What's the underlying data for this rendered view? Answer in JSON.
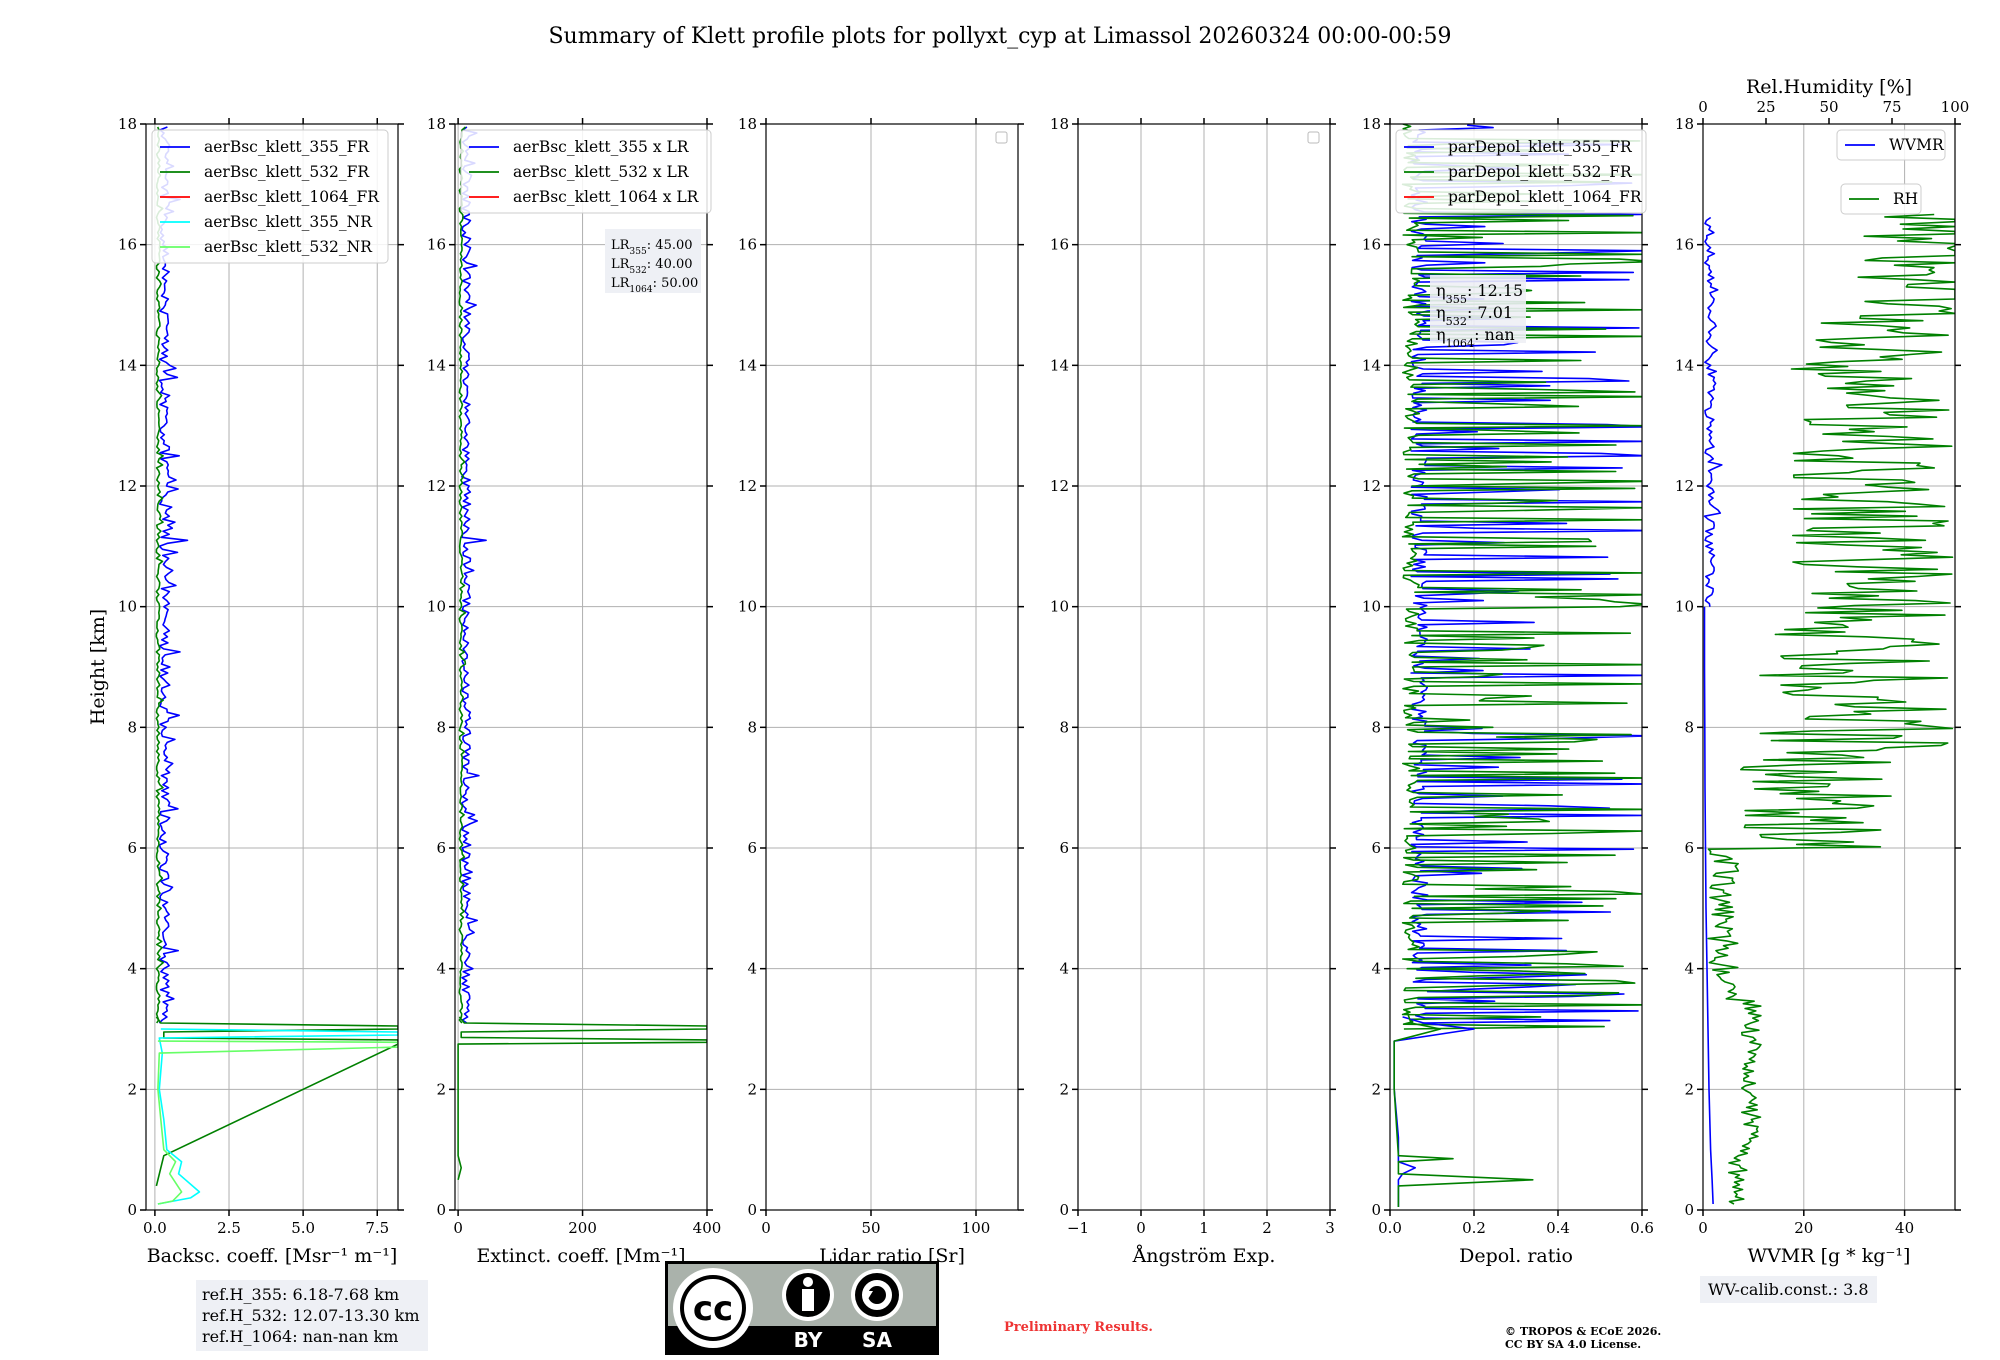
{
  "figure_title": "Summary of Klett profile plots for pollyxt_cyp at Limassol 20260324 00:00-00:59",
  "colors": {
    "blue": "#0000ff",
    "green": "#008000",
    "red": "#ff0000",
    "cyan": "#00ffff",
    "lightgreen": "#66ff66",
    "grid": "#b0b0b0"
  },
  "chart_data": [
    {
      "id": "bsc",
      "type": "line",
      "xlabel": "Backsc. coeff. [Msr⁻¹ m⁻¹]",
      "ylabel": "Height [km]",
      "xlim": [
        -0.3,
        8.2
      ],
      "ylim": [
        0,
        18
      ],
      "xticks": [
        0,
        2.5,
        5,
        7.5
      ],
      "xticklabels": [
        "0.0",
        "2.5",
        "5.0",
        "7.5"
      ],
      "yticks": [
        0,
        2,
        4,
        6,
        8,
        10,
        12,
        14,
        16,
        18
      ],
      "legend": [
        "aerBsc_klett_355_FR",
        "aerBsc_klett_532_FR",
        "aerBsc_klett_1064_FR",
        "aerBsc_klett_355_NR",
        "aerBsc_klett_532_NR"
      ],
      "series": [
        {
          "name": "aerBsc_klett_355_FR",
          "color": "blue",
          "style": "noisy",
          "h": [
            3.1,
            18
          ],
          "base": 0.15,
          "amp": 0.35,
          "spikes": [
            [
              11.1,
              1.1
            ],
            [
              4.1,
              0.4
            ],
            [
              10.6,
              0.6
            ]
          ]
        },
        {
          "name": "aerBsc_klett_532_FR",
          "color": "green",
          "style": "noisy",
          "h": [
            3.1,
            18
          ],
          "base": 0.05,
          "amp": 0.12,
          "spikes": []
        },
        {
          "name": "aerBsc_klett_532_FR_cloud",
          "color": "green",
          "style": "pts",
          "x": [
            0.05,
            0.3,
            8.2,
            8.2,
            0.3,
            0.3,
            8.2,
            8.2,
            0.2,
            0.05
          ],
          "y": [
            0.4,
            0.9,
            2.75,
            2.82,
            2.85,
            2.95,
            3.0,
            3.05,
            3.1,
            3.2
          ]
        },
        {
          "name": "aerBsc_klett_355_NR",
          "color": "cyan",
          "style": "pts",
          "x": [
            0.1,
            1.2,
            1.5,
            0.8,
            0.9,
            0.4,
            0.3,
            0.15,
            0.2,
            0.25,
            0.15,
            8.2,
            8.2,
            0.2
          ],
          "y": [
            0.1,
            0.2,
            0.3,
            0.6,
            0.8,
            1.0,
            1.5,
            2.0,
            2.3,
            2.6,
            2.85,
            2.9,
            2.95,
            3.0
          ]
        },
        {
          "name": "aerBsc_klett_532_NR",
          "color": "lightgreen",
          "style": "pts",
          "x": [
            0.1,
            0.6,
            0.9,
            0.5,
            0.7,
            0.3,
            0.2,
            0.1,
            0.15,
            8.2,
            8.2,
            0.1
          ],
          "y": [
            0.1,
            0.15,
            0.3,
            0.6,
            0.8,
            1.0,
            1.5,
            2.0,
            2.6,
            2.7,
            2.78,
            2.8
          ]
        }
      ]
    },
    {
      "id": "ext",
      "type": "line",
      "xlabel": "Extinct. coeff. [Mm⁻¹]",
      "xlim": [
        -5,
        400
      ],
      "ylim": [
        0,
        18
      ],
      "xticks": [
        0,
        200,
        400
      ],
      "xticklabels": [
        "0",
        "200",
        "400"
      ],
      "yticks": [
        0,
        2,
        4,
        6,
        8,
        10,
        12,
        14,
        16,
        18
      ],
      "legend": [
        "aerBsc_klett_355 x LR",
        "aerBsc_klett_532 x LR",
        "aerBsc_klett_1064 x LR"
      ],
      "lr_box": [
        [
          "355",
          "45.00"
        ],
        [
          "532",
          "40.00"
        ],
        [
          "1064",
          "50.00"
        ]
      ],
      "series": [
        {
          "name": "aerBsc_klett_355 x LR",
          "color": "blue",
          "style": "noisy",
          "h": [
            3.1,
            18
          ],
          "base": 6,
          "amp": 14,
          "spikes": [
            [
              11.1,
              45
            ],
            [
              10.6,
              25
            ]
          ]
        },
        {
          "name": "aerBsc_klett_532 x LR",
          "color": "green",
          "style": "noisy",
          "h": [
            3.1,
            18
          ],
          "base": 2,
          "amp": 5,
          "spikes": []
        },
        {
          "name": "aerBsc_klett_532 x LR_cloud",
          "color": "green",
          "style": "pts",
          "x": [
            0,
            5,
            0,
            0,
            400,
            400,
            5,
            5,
            400,
            400,
            10,
            2
          ],
          "y": [
            0.5,
            0.7,
            0.9,
            2.75,
            2.78,
            2.82,
            2.86,
            2.95,
            3.0,
            3.05,
            3.1,
            3.2
          ]
        }
      ]
    },
    {
      "id": "lr",
      "type": "line",
      "xlabel": "Lidar ratio [Sr]",
      "xlim": [
        0,
        120
      ],
      "ylim": [
        0,
        18
      ],
      "xticks": [
        0,
        50,
        100
      ],
      "xticklabels": [
        "0",
        "50",
        "100"
      ],
      "yticks": [
        0,
        2,
        4,
        6,
        8,
        10,
        12,
        14,
        16,
        18
      ],
      "empty_legend": true,
      "series": []
    },
    {
      "id": "ang",
      "type": "line",
      "xlabel": "Ångström Exp.",
      "xlim": [
        -1,
        3
      ],
      "ylim": [
        0,
        18
      ],
      "xticks": [
        -1,
        0,
        1,
        2,
        3
      ],
      "xticklabels": [
        "−1",
        "0",
        "1",
        "2",
        "3"
      ],
      "yticks": [
        0,
        2,
        4,
        6,
        8,
        10,
        12,
        14,
        16,
        18
      ],
      "empty_legend": true,
      "series": []
    },
    {
      "id": "dep",
      "type": "line",
      "xlabel": "Depol. ratio",
      "xlim": [
        0,
        0.6
      ],
      "ylim": [
        0,
        18
      ],
      "xticks": [
        0,
        0.2,
        0.4,
        0.6
      ],
      "xticklabels": [
        "0.0",
        "0.2",
        "0.4",
        "0.6"
      ],
      "yticks": [
        0,
        2,
        4,
        6,
        8,
        10,
        12,
        14,
        16,
        18
      ],
      "legend": [
        "parDepol_klett_355_FR",
        "parDepol_klett_532_FR",
        "parDepol_klett_1064_FR"
      ],
      "eta_box": [
        [
          "355",
          "12.15"
        ],
        [
          "532",
          "7.01"
        ],
        [
          "1064",
          "nan"
        ]
      ],
      "series": [
        {
          "name": "parDepol_klett_355_FR",
          "color": "blue",
          "style": "spiky",
          "h": [
            3.1,
            18
          ],
          "base": 0.05,
          "amp": 0.6
        },
        {
          "name": "parDepol_klett_532_FR",
          "color": "green",
          "style": "spiky",
          "h": [
            3.0,
            18
          ],
          "base": 0.03,
          "amp": 0.6
        },
        {
          "name": "parDepol_klett_355_FR_low",
          "color": "blue",
          "style": "pts",
          "x": [
            0.02,
            0.02,
            0.03,
            0.06,
            0.02,
            0.02,
            0.01,
            0.01,
            0.01,
            0.2,
            0.08,
            0.03
          ],
          "y": [
            0.05,
            0.5,
            0.6,
            0.7,
            0.8,
            1.2,
            2.0,
            2.6,
            2.8,
            3.0,
            3.1,
            3.2
          ]
        },
        {
          "name": "parDepol_klett_532_FR_low",
          "color": "green",
          "style": "pts",
          "x": [
            0.02,
            0.02,
            0.34,
            0.02,
            0.02,
            0.15,
            0.02,
            0.01,
            0.01,
            0.12,
            0.05,
            0.04
          ],
          "y": [
            0.05,
            0.4,
            0.5,
            0.6,
            0.8,
            0.85,
            0.9,
            2.0,
            2.8,
            3.0,
            3.1,
            3.3
          ]
        }
      ]
    },
    {
      "id": "wv",
      "type": "line",
      "xlabel": "WVMR [g * kg⁻¹]",
      "xlim": [
        0,
        50
      ],
      "ylim": [
        0,
        18
      ],
      "xticks": [
        0,
        20,
        40
      ],
      "xticklabels": [
        "0",
        "20",
        "40"
      ],
      "yticks": [
        0,
        2,
        4,
        6,
        8,
        10,
        12,
        14,
        16,
        18
      ],
      "top_xlabel": "Rel.Humidity [%]",
      "top_xlim": [
        0,
        100
      ],
      "top_xticks": [
        0,
        25,
        50,
        75,
        100
      ],
      "top_xticklabels": [
        "0",
        "25",
        "50",
        "75",
        "100"
      ],
      "legend_wvmr": "WVMR",
      "legend_rh": "RH",
      "series": [
        {
          "name": "WVMR",
          "color": "blue",
          "style": "pts",
          "x": [
            2.0,
            1.8,
            1.5,
            1.2,
            1.0,
            0.8,
            0.6,
            0.5,
            0.4,
            0.35,
            0.3,
            0.3
          ],
          "y": [
            0.1,
            0.5,
            1.0,
            2.0,
            3.0,
            4.0,
            5.0,
            6.0,
            7.0,
            8.0,
            9.0,
            10.0
          ]
        },
        {
          "name": "WVMR_upper",
          "color": "blue",
          "style": "noisy",
          "h": [
            10,
            16.5
          ],
          "base": 0.3,
          "amp": 2.0,
          "spikes": []
        },
        {
          "name": "RH",
          "color": "green",
          "style": "rh"
        }
      ]
    }
  ],
  "ref_heights": [
    "ref.H_355: 6.18-7.68 km",
    "ref.H_532: 12.07-13.30 km",
    "ref.H_1064: nan-nan km"
  ],
  "wv_calib": "WV-calib.const.: 3.8",
  "preliminary": "Preliminary Results.",
  "copyright": [
    "© TROPOS & ECoE 2026.",
    "CC BY SA 4.0 License."
  ],
  "cc_logo": {
    "label_cc": "cc",
    "label_by": "BY",
    "label_sa": "SA"
  }
}
